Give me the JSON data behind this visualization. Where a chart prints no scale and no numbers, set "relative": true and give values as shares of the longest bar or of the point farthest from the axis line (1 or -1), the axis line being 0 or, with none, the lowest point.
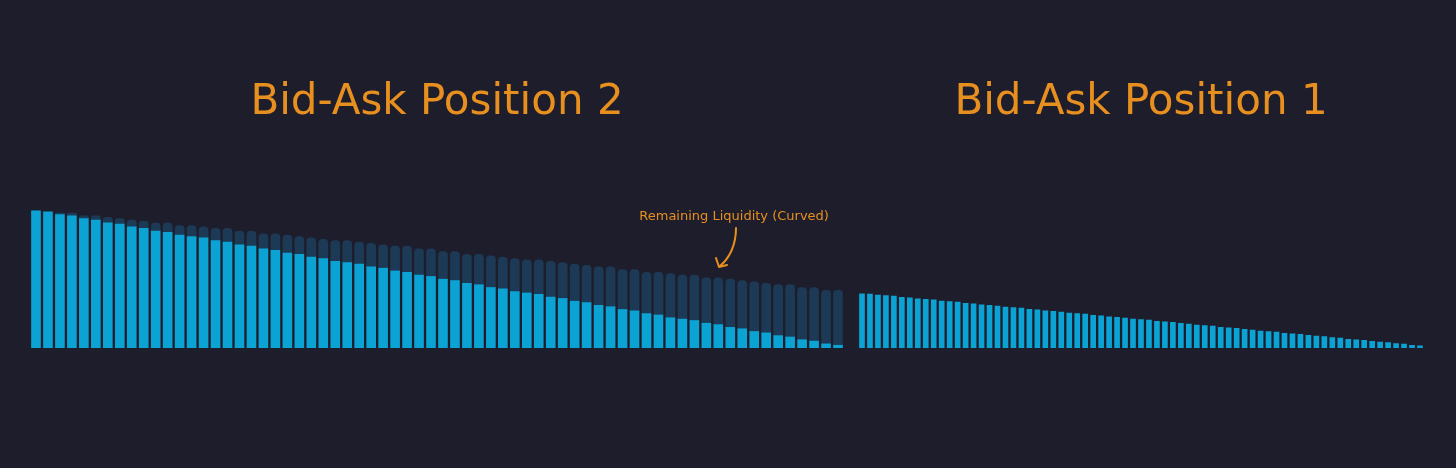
{
  "chart_data": [
    {
      "type": "bar",
      "title": "Bid-Ask Position 2",
      "relative": true,
      "stacked": true,
      "legend": false,
      "categories": [
        null,
        null,
        null,
        null,
        null,
        null,
        null,
        null,
        null,
        null,
        null,
        null,
        null,
        null,
        null,
        null,
        null,
        null,
        null,
        null,
        null,
        null,
        null,
        null,
        null,
        null,
        null,
        null,
        null,
        null,
        null,
        null,
        null,
        null,
        null,
        null,
        null,
        null,
        null,
        null,
        null,
        null,
        null,
        null,
        null,
        null,
        null,
        null,
        null,
        null,
        null,
        null,
        null,
        null,
        null,
        null,
        null,
        null,
        null,
        null,
        null,
        null,
        null,
        null,
        null,
        null,
        null,
        null
      ],
      "series": [
        {
          "color": "#0aa3d4",
          "values": [
            1.0,
            0.99,
            0.97,
            0.96,
            0.94,
            0.93,
            0.91,
            0.9,
            0.88,
            0.87,
            0.85,
            0.84,
            0.82,
            0.81,
            0.8,
            0.78,
            0.77,
            0.75,
            0.74,
            0.72,
            0.71,
            0.69,
            0.68,
            0.66,
            0.65,
            0.63,
            0.62,
            0.61,
            0.59,
            0.58,
            0.56,
            0.55,
            0.53,
            0.52,
            0.5,
            0.49,
            0.47,
            0.46,
            0.44,
            0.43,
            0.41,
            0.4,
            0.39,
            0.37,
            0.36,
            0.34,
            0.33,
            0.31,
            0.3,
            0.28,
            0.27,
            0.25,
            0.24,
            0.22,
            0.21,
            0.2,
            0.18,
            0.17,
            0.15,
            0.14,
            0.12,
            0.11,
            0.09,
            0.08,
            0.06,
            0.05,
            0.03,
            0.02
          ]
        },
        {
          "color": "#1c3a55",
          "values": [
            0.0,
            null,
            0.01,
            0.02,
            0.02,
            0.03,
            0.04,
            0.04,
            0.05,
            0.05,
            0.06,
            0.07,
            0.07,
            0.08,
            0.08,
            0.09,
            0.1,
            0.1,
            0.11,
            0.11,
            0.12,
            0.13,
            0.13,
            0.14,
            0.14,
            0.15,
            0.16,
            0.16,
            0.17,
            0.17,
            0.18,
            0.19,
            0.19,
            0.2,
            0.2,
            0.21,
            0.21,
            0.22,
            0.23,
            0.23,
            0.24,
            0.24,
            0.25,
            0.26,
            0.26,
            0.27,
            0.27,
            0.28,
            0.29,
            0.29,
            0.3,
            0.3,
            0.31,
            0.32,
            0.32,
            0.33,
            0.33,
            0.34,
            0.35,
            0.35,
            0.36,
            0.36,
            0.37,
            0.38,
            0.38,
            0.39,
            0.39,
            0.4
          ]
        }
      ],
      "annotations": [
        "Remaining Liquidity (Curved)"
      ]
    },
    {
      "type": "bar",
      "title": "Bid-Ask Position 1",
      "relative": true,
      "legend": false,
      "categories": [
        null,
        null,
        null,
        null,
        null,
        null,
        null,
        null,
        null,
        null,
        null,
        null,
        null,
        null,
        null,
        null,
        null,
        null,
        null,
        null,
        null,
        null,
        null,
        null,
        null,
        null,
        null,
        null,
        null,
        null,
        null,
        null,
        null,
        null,
        null,
        null,
        null,
        null,
        null,
        null,
        null,
        null,
        null,
        null,
        null,
        null,
        null,
        null,
        null,
        null,
        null,
        null,
        null,
        null,
        null,
        null,
        null,
        null,
        null,
        null,
        null,
        null,
        null,
        null,
        null,
        null,
        null,
        null,
        null,
        null,
        null
      ],
      "series": [
        {
          "color": "#0aa3d4",
          "values": [
            1.0,
            0.99,
            0.97,
            0.96,
            0.95,
            0.93,
            0.92,
            0.9,
            0.89,
            0.88,
            0.86,
            0.85,
            0.84,
            0.82,
            0.81,
            0.79,
            0.78,
            0.77,
            0.75,
            0.74,
            0.73,
            0.71,
            0.7,
            0.68,
            0.67,
            0.66,
            0.64,
            0.63,
            0.62,
            0.6,
            0.59,
            0.57,
            0.56,
            0.55,
            0.53,
            0.52,
            0.51,
            0.49,
            0.48,
            0.47,
            0.45,
            0.44,
            0.42,
            0.41,
            0.4,
            0.38,
            0.37,
            0.36,
            0.34,
            0.33,
            0.31,
            0.3,
            0.29,
            0.27,
            0.26,
            0.25,
            0.23,
            0.22,
            0.21,
            0.19,
            0.18,
            0.16,
            0.15,
            0.14,
            0.12,
            0.11,
            0.1,
            0.08,
            0.07,
            0.05,
            0.04
          ]
        }
      ]
    }
  ]
}
